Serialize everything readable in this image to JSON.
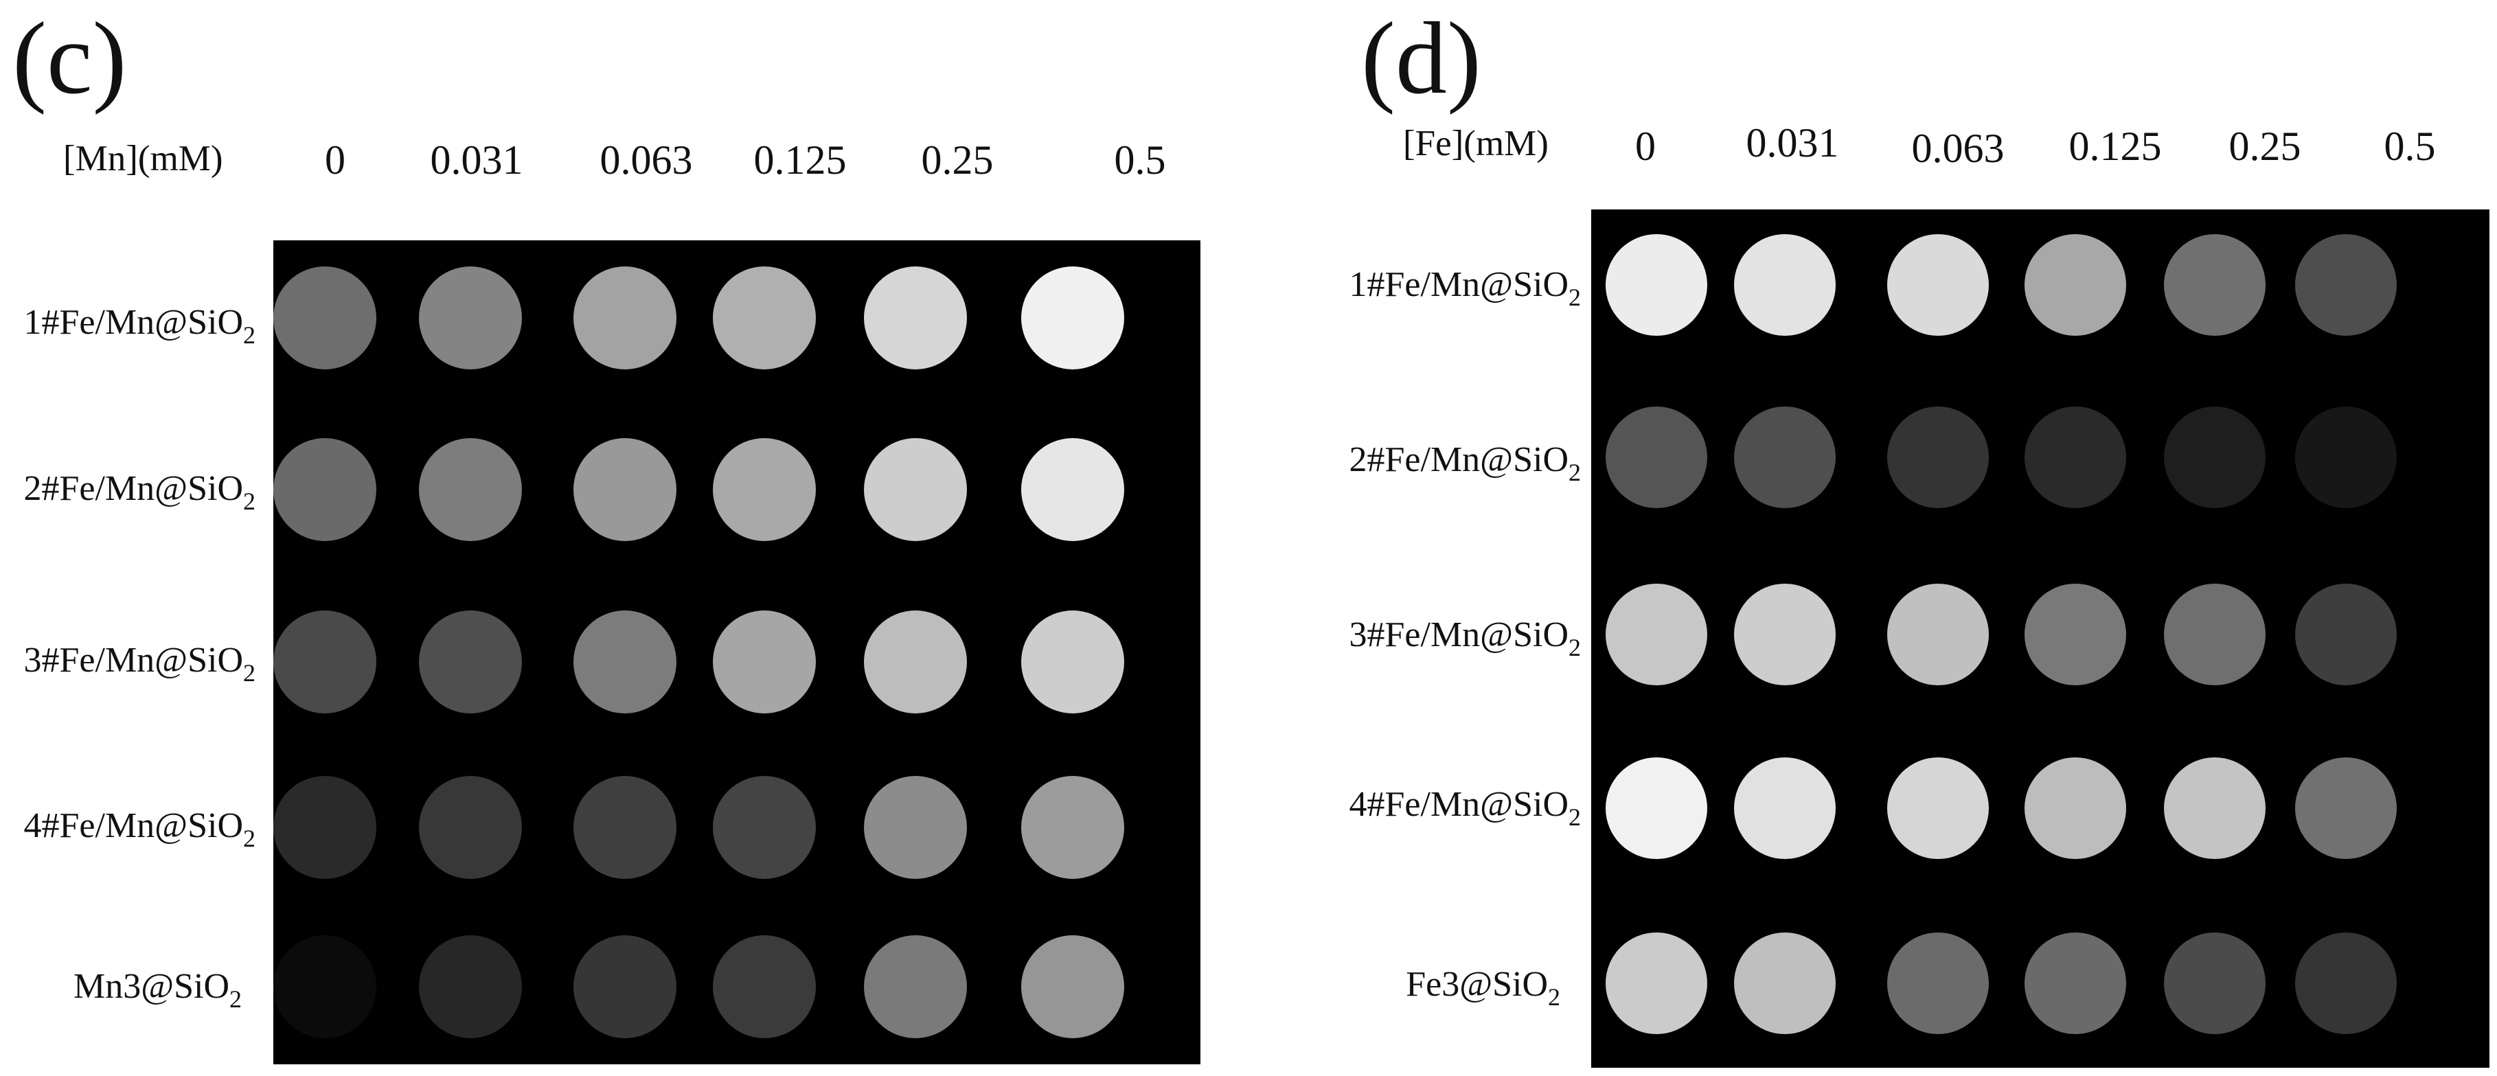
{
  "panels": [
    {
      "letter": "(c)",
      "concentration_label": "[Mn](mM)",
      "columns": [
        "0",
        "0.031",
        "0.063",
        "0.125",
        "0.25",
        "0.5"
      ],
      "rows": [
        {
          "prefix": "1#Fe/Mn@SiO",
          "sub": "2"
        },
        {
          "prefix": "2#Fe/Mn@SiO",
          "sub": "2"
        },
        {
          "prefix": "3#Fe/Mn@SiO",
          "sub": "2"
        },
        {
          "prefix": "4#Fe/Mn@SiO",
          "sub": "2"
        },
        {
          "prefix": "Mn3@SiO",
          "sub": "2"
        }
      ],
      "wells": [
        [
          "#6e6e6e",
          "#848484",
          "#a3a3a3",
          "#b0b0b0",
          "#d6d6d6",
          "#f0f0f0"
        ],
        [
          "#6a6a6a",
          "#7d7d7d",
          "#999999",
          "#a9a9a9",
          "#cdcdcd",
          "#e6e6e6"
        ],
        [
          "#4a4a4a",
          "#4f4f4f",
          "#7c7c7c",
          "#a6a6a6",
          "#bdbdbd",
          "#cdcdcd"
        ],
        [
          "#2a2a2a",
          "#383838",
          "#3f3f3f",
          "#444444",
          "#8c8c8c",
          "#9c9c9c"
        ],
        [
          "#0b0b0b",
          "#272727",
          "#363636",
          "#3b3b3b",
          "#7a7a7a",
          "#969696"
        ]
      ]
    },
    {
      "letter": "(d)",
      "concentration_label": "[Fe](mM)",
      "columns": [
        "0",
        "0.031",
        "0.063",
        "0.125",
        "0.25",
        "0.5"
      ],
      "rows": [
        {
          "prefix": "1#Fe/Mn@SiO",
          "sub": "2"
        },
        {
          "prefix": "2#Fe/Mn@SiO",
          "sub": "2"
        },
        {
          "prefix": "3#Fe/Mn@SiO",
          "sub": "2"
        },
        {
          "prefix": "4#Fe/Mn@SiO",
          "sub": "2"
        },
        {
          "prefix": "Fe3@SiO",
          "sub": "2"
        }
      ],
      "wells": [
        [
          "#ececec",
          "#e3e3e3",
          "#dadada",
          "#a8a8a8",
          "#707070",
          "#4e4e4e"
        ],
        [
          "#555555",
          "#4f4f4f",
          "#343434",
          "#2a2a2a",
          "#1e1e1e",
          "#171717"
        ],
        [
          "#c7c7c7",
          "#cdcdcd",
          "#c0c0c0",
          "#797979",
          "#6f6f6f",
          "#3e3e3e"
        ],
        [
          "#f1f1f1",
          "#e1e1e1",
          "#d6d6d6",
          "#bdbdbd",
          "#c4c4c4",
          "#717171"
        ],
        [
          "#cbcbcb",
          "#bfbfbf",
          "#6b6b6b",
          "#6a6a6a",
          "#4b4b4b",
          "#353535"
        ]
      ]
    }
  ]
}
